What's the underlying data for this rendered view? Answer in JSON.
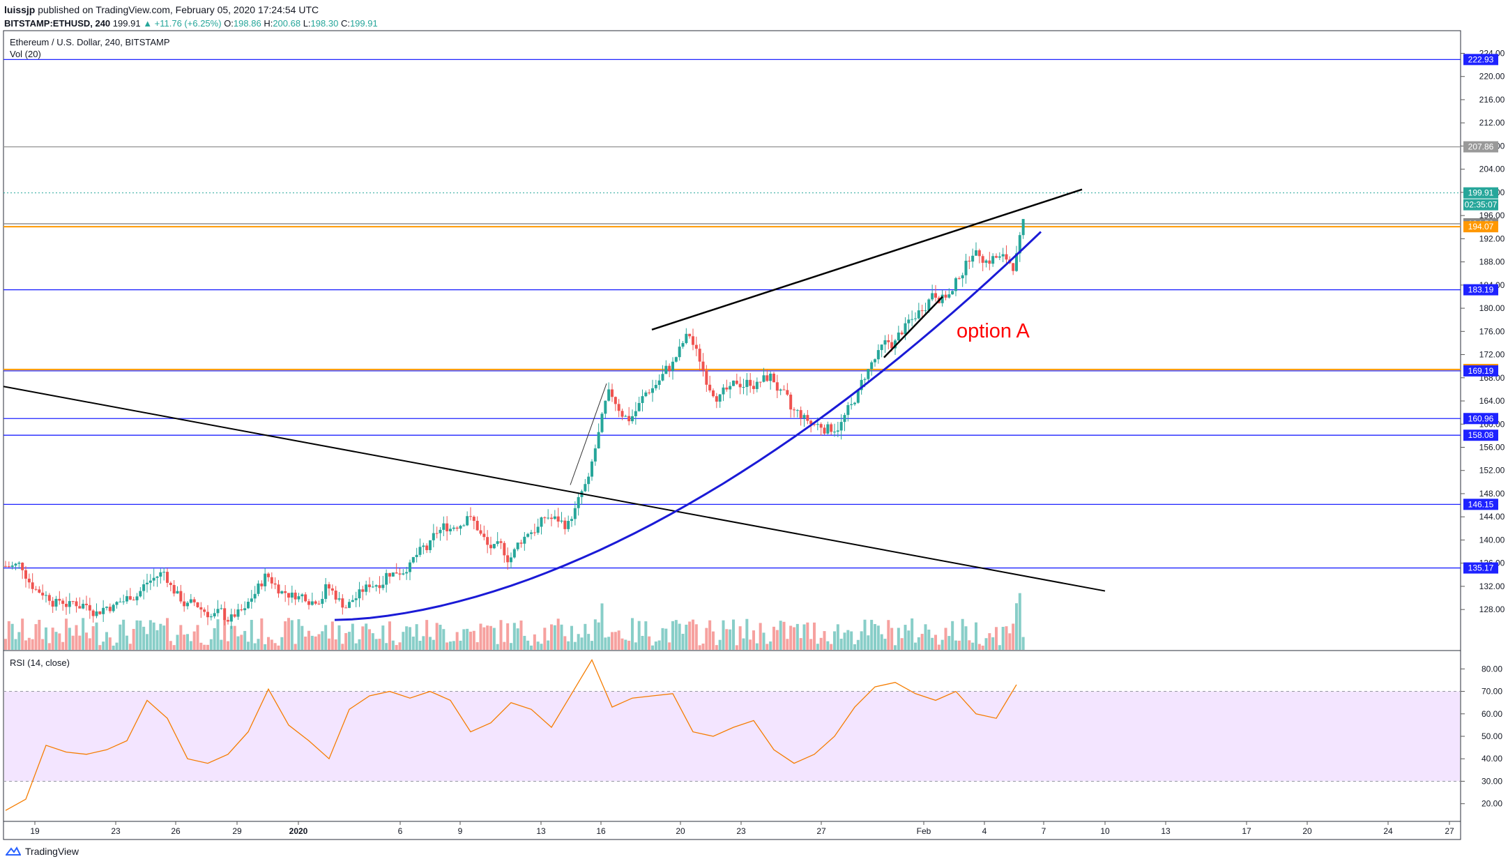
{
  "header": {
    "user": "luissjp",
    "published_text": "published on TradingView.com, February 05, 2020 17:24:54 UTC",
    "symbol": "BITSTAMP:ETHUSD, 240",
    "last": "199.91",
    "change": "▲ +11.76 (+6.25%)",
    "o_label": "O:",
    "o_val": "198.86",
    "h_label": "H:",
    "h_val": "200.68",
    "l_label": "L:",
    "l_val": "198.30",
    "c_label": "C:",
    "c_val": "199.91"
  },
  "pane": {
    "title": "Ethereum / U.S. Dollar, 240, BITSTAMP",
    "vol_label": "Vol (20)",
    "rsi_label": "RSI (14, close)"
  },
  "annotation": {
    "text": "option A",
    "color": "#ff0000"
  },
  "footer": {
    "brand": "TradingView"
  },
  "colors": {
    "up": "#26a69a",
    "down": "#ef5350",
    "rsi_line": "#f57c00",
    "rsi_band": "#f3e5ff",
    "hline_blue": "#1e22ff",
    "hline_orange": "#ff9800",
    "curve_blue": "#1a1ad6",
    "trend_black": "#000000"
  },
  "chart_data": [
    {
      "type": "candlestick",
      "ylim": [
        126,
        225.5
      ],
      "y_ticks": [
        "224.00",
        "220.00",
        "216.00",
        "212.00",
        "208.00",
        "204.00",
        "200.00",
        "196.00",
        "192.00",
        "188.00",
        "184.00",
        "180.00",
        "176.00",
        "172.00",
        "168.00",
        "164.00",
        "160.00",
        "156.00",
        "152.00",
        "148.00",
        "144.00",
        "140.00",
        "136.00",
        "132.00",
        "128.00"
      ],
      "x_ticks": [
        "19",
        "23",
        "26",
        "29",
        "2020",
        "6",
        "9",
        "13",
        "16",
        "20",
        "23",
        "27",
        "Feb",
        "4",
        "7",
        "10",
        "13",
        "17",
        "20",
        "24",
        "27"
      ],
      "x_labels_bold": [
        "2020"
      ],
      "horizontal_levels": [
        {
          "value": 222.93,
          "label": "222.93",
          "color": "#1e22ff"
        },
        {
          "value": 207.86,
          "label": "207.86",
          "color": "#999999"
        },
        {
          "value": 194.58,
          "label": "194.58",
          "color": "#888888"
        },
        {
          "value": 194.07,
          "label": "194.07",
          "color": "#ff9800"
        },
        {
          "value": 183.19,
          "label": "183.19",
          "color": "#1e22ff"
        },
        {
          "value": 169.43,
          "label": "169.43",
          "color": "#ff9800"
        },
        {
          "value": 169.19,
          "label": "169.19",
          "color": "#1e22ff"
        },
        {
          "value": 160.96,
          "label": "160.96",
          "color": "#1e22ff"
        },
        {
          "value": 158.08,
          "label": "158.08",
          "color": "#1e22ff"
        },
        {
          "value": 146.15,
          "label": "146.15",
          "color": "#1e22ff"
        },
        {
          "value": 135.17,
          "label": "135.17",
          "color": "#1e22ff"
        }
      ],
      "last_price": {
        "value": 199.91,
        "label": "199.91",
        "countdown": "02:35:07"
      },
      "close_series_points": [
        [
          "Dec 17",
          135.5
        ],
        [
          "Dec 18",
          131.0
        ],
        [
          "Dec 19",
          129.5
        ],
        [
          "Dec 20",
          128.8
        ],
        [
          "Dec 21",
          128.2
        ],
        [
          "Dec 22",
          129.5
        ],
        [
          "Dec 23",
          132.0
        ],
        [
          "Dec 24",
          134.5
        ],
        [
          "Dec 25",
          129.0
        ],
        [
          "Dec 26",
          127.8
        ],
        [
          "Dec 27",
          127.0
        ],
        [
          "Dec 28",
          127.5
        ],
        [
          "Dec 29",
          133.5
        ],
        [
          "Dec 30",
          131.0
        ],
        [
          "Dec 31",
          130.5
        ],
        [
          "Jan 01",
          131.5
        ],
        [
          "Jan 02",
          128.5
        ],
        [
          "Jan 03",
          131.5
        ],
        [
          "Jan 04",
          134.0
        ],
        [
          "Jan 05",
          135.5
        ],
        [
          "Jan 06",
          138.5
        ],
        [
          "Jan 07",
          142.5
        ],
        [
          "Jan 08",
          144.5
        ],
        [
          "Jan 09",
          139.0
        ],
        [
          "Jan 10",
          137.0
        ],
        [
          "Jan 11",
          141.5
        ],
        [
          "Jan 12",
          144.0
        ],
        [
          "Jan 13",
          142.5
        ],
        [
          "Jan 14",
          150.0
        ],
        [
          "Jan 15",
          165.0
        ],
        [
          "Jan 16",
          161.0
        ],
        [
          "Jan 17",
          166.0
        ],
        [
          "Jan 18",
          170.0
        ],
        [
          "Jan 19",
          175.5
        ],
        [
          "Jan 20",
          166.5
        ],
        [
          "Jan 21",
          165.5
        ],
        [
          "Jan 22",
          167.5
        ],
        [
          "Jan 23",
          168.0
        ],
        [
          "Jan 24",
          162.5
        ],
        [
          "Jan 25",
          160.0
        ],
        [
          "Jan 26",
          159.5
        ],
        [
          "Jan 27",
          163.0
        ],
        [
          "Jan 28",
          170.5
        ],
        [
          "Jan 29",
          174.0
        ],
        [
          "Jan 30",
          178.0
        ],
        [
          "Jan 31",
          183.0
        ],
        [
          "Feb 01",
          182.5
        ],
        [
          "Feb 02",
          190.0
        ],
        [
          "Feb 03",
          188.5
        ],
        [
          "Feb 04",
          187.5
        ],
        [
          "Feb 05",
          199.91
        ]
      ],
      "volume_label": "Vol (20)"
    },
    {
      "type": "line",
      "name": "RSI (14, close)",
      "ylim": [
        14,
        86
      ],
      "y_ticks": [
        "80.00",
        "70.00",
        "60.00",
        "50.00",
        "40.00",
        "30.00",
        "20.00"
      ],
      "bands": [
        30,
        70
      ],
      "x": [
        "Dec 17",
        "Dec 18",
        "Dec 19",
        "Dec 20",
        "Dec 21",
        "Dec 22",
        "Dec 23",
        "Dec 24",
        "Dec 25",
        "Dec 26",
        "Dec 27",
        "Dec 28",
        "Dec 29",
        "Dec 30",
        "Dec 31",
        "Jan 01",
        "Jan 02",
        "Jan 03",
        "Jan 04",
        "Jan 05",
        "Jan 06",
        "Jan 07",
        "Jan 08",
        "Jan 09",
        "Jan 10",
        "Jan 11",
        "Jan 12",
        "Jan 13",
        "Jan 14",
        "Jan 15",
        "Jan 16",
        "Jan 17",
        "Jan 18",
        "Jan 19",
        "Jan 20",
        "Jan 21",
        "Jan 22",
        "Jan 23",
        "Jan 24",
        "Jan 25",
        "Jan 26",
        "Jan 27",
        "Jan 28",
        "Jan 29",
        "Jan 30",
        "Jan 31",
        "Feb 01",
        "Feb 02",
        "Feb 03",
        "Feb 04",
        "Feb 05"
      ],
      "values": [
        17,
        22,
        46,
        43,
        42,
        44,
        48,
        66,
        58,
        40,
        38,
        42,
        52,
        71,
        55,
        48,
        40,
        62,
        68,
        70,
        67,
        70,
        66,
        52,
        56,
        65,
        62,
        54,
        69,
        84,
        63,
        67,
        68,
        69,
        52,
        50,
        54,
        57,
        44,
        38,
        42,
        50,
        63,
        72,
        74,
        69,
        66,
        70,
        60,
        58,
        73
      ]
    }
  ]
}
